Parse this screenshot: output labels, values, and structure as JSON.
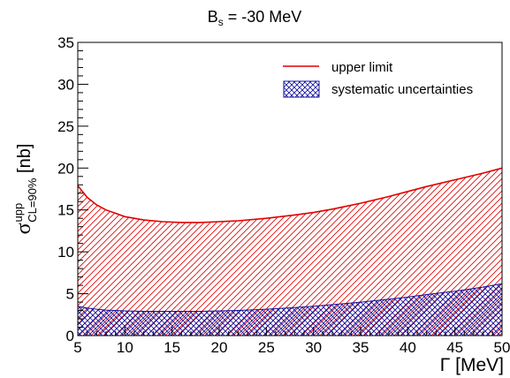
{
  "chart_data": {
    "type": "area",
    "title": "B",
    "title_subscript": "s",
    "title_suffix": " = -30 MeV",
    "xlabel": "Γ [MeV]",
    "ylabel_main": "σ",
    "ylabel_sup": "upp",
    "ylabel_sub": "CL=90%",
    "ylabel_unit": " [nb]",
    "xlim": [
      5,
      50
    ],
    "ylim": [
      0,
      35
    ],
    "x_ticks": [
      "5",
      "10",
      "15",
      "20",
      "25",
      "30",
      "35",
      "40",
      "45",
      "50"
    ],
    "y_ticks": [
      "0",
      "5",
      "10",
      "15",
      "20",
      "25",
      "30",
      "35"
    ],
    "grid": false,
    "legend_position": "top-right",
    "x": [
      5,
      6,
      7,
      8,
      9,
      10,
      12,
      14,
      16,
      18,
      20,
      22,
      25,
      28,
      30,
      32,
      35,
      38,
      40,
      42,
      45,
      48,
      50
    ],
    "series": [
      {
        "name": "upper limit",
        "color": "#e00000",
        "hatch": "diagonal",
        "values": [
          17.9,
          16.5,
          15.6,
          15.0,
          14.6,
          14.2,
          13.8,
          13.6,
          13.5,
          13.5,
          13.6,
          13.7,
          14.0,
          14.4,
          14.7,
          15.1,
          15.8,
          16.6,
          17.2,
          17.8,
          18.6,
          19.4,
          20.0
        ]
      },
      {
        "name": "systematic uncertainties",
        "color": "#1010a0",
        "hatch": "crosshatch",
        "values": [
          3.5,
          3.3,
          3.15,
          3.05,
          3.0,
          2.95,
          2.9,
          2.9,
          2.9,
          2.9,
          2.95,
          3.0,
          3.15,
          3.35,
          3.5,
          3.7,
          4.0,
          4.35,
          4.6,
          4.9,
          5.3,
          5.8,
          6.2
        ]
      }
    ]
  }
}
